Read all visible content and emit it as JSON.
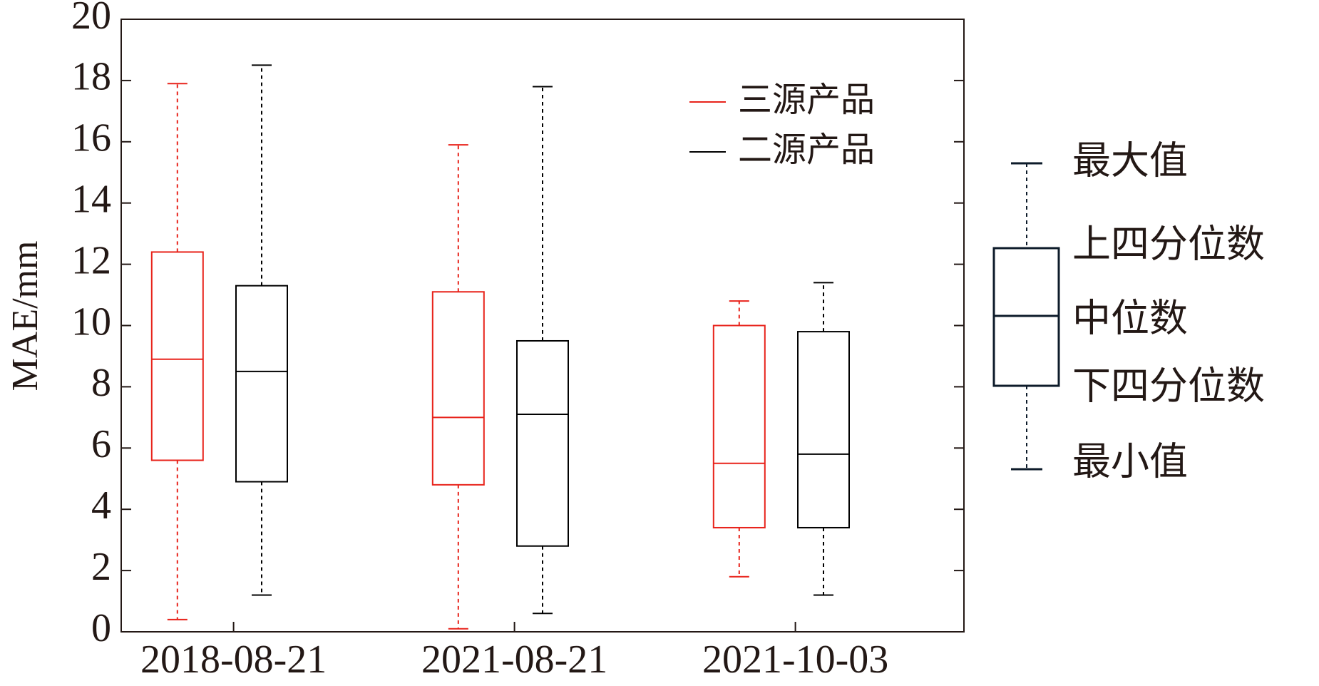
{
  "chart_data": {
    "type": "box",
    "y_label": "MAE/mm",
    "categories": [
      "2018-08-21",
      "2021-08-21",
      "2021-10-03"
    ],
    "series": [
      {
        "name": "三源产品",
        "color": "#e8231b",
        "values": [
          [
            0.4,
            5.6,
            8.9,
            12.4,
            17.9
          ],
          [
            0.1,
            4.8,
            7.0,
            11.1,
            15.9
          ],
          [
            1.8,
            3.4,
            5.5,
            10.0,
            10.8
          ]
        ]
      },
      {
        "name": "二源产品",
        "color": "#000000",
        "values": [
          [
            1.2,
            4.9,
            8.5,
            11.3,
            18.5
          ],
          [
            0.6,
            2.8,
            7.1,
            9.5,
            17.8
          ],
          [
            1.2,
            3.4,
            5.8,
            9.8,
            11.4
          ]
        ]
      }
    ],
    "ylim": [
      0,
      20
    ],
    "yticks": [
      0,
      2,
      4,
      6,
      8,
      10,
      12,
      14,
      16,
      18,
      20
    ],
    "box_key_labels": [
      "最大值",
      "上四分位数",
      "中位数",
      "下四分位数",
      "最小值"
    ]
  }
}
